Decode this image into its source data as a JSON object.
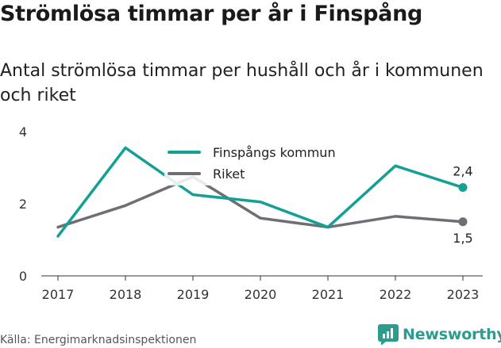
{
  "title": "Strömlösa timmar per år i Finspång",
  "subtitle": "Antal strömlösa timmar per hushåll och år i kommunen och riket",
  "source": "Källa: Energimarknadsinspektionen",
  "brand": {
    "name": "Newsworthy",
    "icon": "newsworthy-logo-icon",
    "color": "#2a9d8f"
  },
  "chart_data": {
    "type": "line",
    "categories": [
      "2017",
      "2018",
      "2019",
      "2020",
      "2021",
      "2022",
      "2023"
    ],
    "series": [
      {
        "name": "Finspångs kommun",
        "color": "#14a095",
        "values": [
          1.1,
          3.55,
          2.25,
          2.05,
          1.35,
          3.05,
          2.45
        ],
        "end_label": "2,4"
      },
      {
        "name": "Riket",
        "color": "#6e6e75",
        "values": [
          1.35,
          1.95,
          2.75,
          1.6,
          1.35,
          1.65,
          1.5
        ],
        "end_label": "1,5"
      }
    ],
    "ylim": [
      0,
      4
    ],
    "yticks": [
      "0",
      "2",
      "4"
    ],
    "grid": false,
    "legend": "top-center"
  }
}
